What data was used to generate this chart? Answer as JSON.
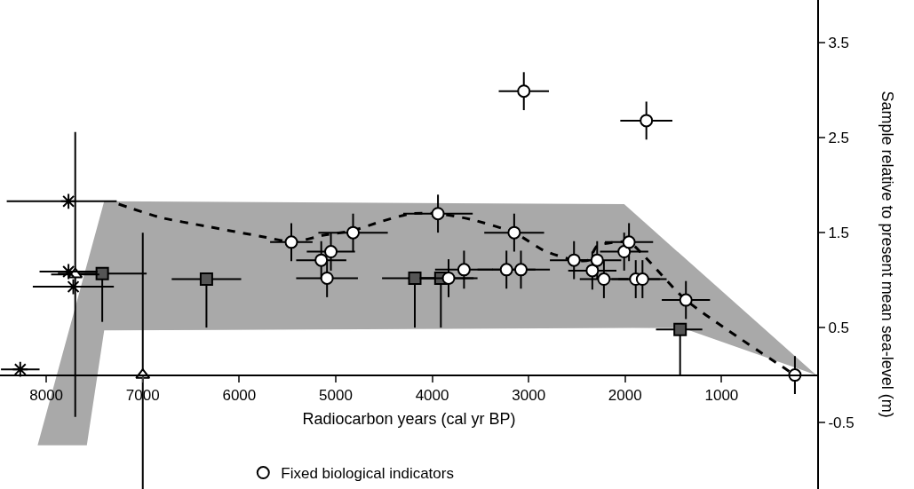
{
  "chart_data": {
    "type": "scatter",
    "xlabel": "Radiocarbon years (cal yr BP)",
    "ylabel": "Sample relative to present mean sea-level (m)",
    "xlim": [
      8480,
      0
    ],
    "ylim": [
      -1.2,
      3.95
    ],
    "xticks": [
      8000,
      7000,
      6000,
      5000,
      4000,
      3000,
      2000,
      1000
    ],
    "yticks": [
      -0.5,
      0.5,
      1.5,
      2.5,
      3.5
    ],
    "grid": false,
    "legend": "bottom",
    "series": [
      {
        "type": "area",
        "color": "#a9a9a9",
        "x": [
          7400,
          2010,
          20,
          1420,
          7400,
          7580,
          8090,
          7400
        ],
        "values": [
          1.83,
          1.8,
          0,
          0.5,
          0.47,
          -0.74,
          -0.74,
          1.83
        ]
      },
      {
        "type": "line",
        "color": "#000000",
        "line_style": "dashed",
        "marker": "none",
        "x": [
          7250,
          6820,
          6360,
          5720,
          5440,
          5140,
          4830,
          4520,
          4220,
          3940,
          3600,
          3150,
          2840,
          2530,
          2380,
          2290,
          1960,
          1790,
          1370,
          240
        ],
        "values": [
          1.8,
          1.66,
          1.57,
          1.45,
          1.4,
          1.47,
          1.52,
          1.62,
          1.7,
          1.7,
          1.64,
          1.5,
          1.31,
          1.21,
          1.21,
          1.36,
          1.4,
          1.24,
          0.79,
          0
        ]
      },
      {
        "color": "#555555",
        "marker": "square",
        "x": [
          7420,
          6340,
          4180,
          3910,
          1430
        ],
        "values": [
          1.07,
          1.01,
          1.02,
          1.02,
          0.48
        ],
        "xerrors": [
          460,
          360,
          340,
          340,
          [
            1200,
            1680
          ]
        ],
        "errors": [
          [
            0.56,
            1.07
          ],
          [
            0.5,
            1.01
          ],
          [
            0.5,
            1.02
          ],
          [
            0.5,
            1.02
          ],
          [
            0,
            0.48
          ]
        ]
      },
      {
        "color": "#ffffff",
        "marker": "triangle",
        "x": [
          7700,
          7000
        ],
        "values": [
          1.06,
          0
        ],
        "xerrors": [
          250,
          null
        ],
        "errors": [
          1.5,
          [
            -1.2,
            1.5
          ]
        ]
      },
      {
        "color": "#000000",
        "marker": "cross",
        "x": [
          7770,
          7770,
          7720,
          8270
        ],
        "values": [
          1.83,
          1.09,
          0.93,
          0.06
        ],
        "xerrors": [
          [
            7270,
            8410
          ],
          300,
          420,
          200
        ]
      },
      {
        "name": "Fixed biological indicators",
        "color": "#ffffff",
        "marker": "circle",
        "x": [
          3050,
          1780,
          5460,
          5150,
          5050,
          5090,
          4820,
          3940,
          3150,
          3670,
          3830,
          3230,
          3080,
          2530,
          2340,
          2290,
          2220,
          2010,
          1960,
          1890,
          1820,
          1370,
          240
        ],
        "values": [
          2.99,
          2.68,
          1.4,
          1.21,
          1.3,
          1.02,
          1.5,
          1.7,
          1.5,
          1.11,
          1.02,
          1.11,
          1.11,
          1.21,
          1.1,
          1.21,
          1.01,
          1.3,
          1.4,
          1.01,
          1.01,
          0.79,
          0
        ],
        "xerrors": [
          260,
          270,
          220,
          260,
          250,
          320,
          360,
          360,
          310,
          300,
          300,
          300,
          300,
          250,
          250,
          250,
          250,
          250,
          250,
          250,
          250,
          250,
          null
        ],
        "errors": [
          0.2,
          0.2,
          0.2,
          0.2,
          0.2,
          0.2,
          0.2,
          0.2,
          0.2,
          0.2,
          0.2,
          0.2,
          0.2,
          0.2,
          0.2,
          0.2,
          0.2,
          0.2,
          0.2,
          0.2,
          0.2,
          0.2,
          0.2
        ]
      }
    ]
  }
}
